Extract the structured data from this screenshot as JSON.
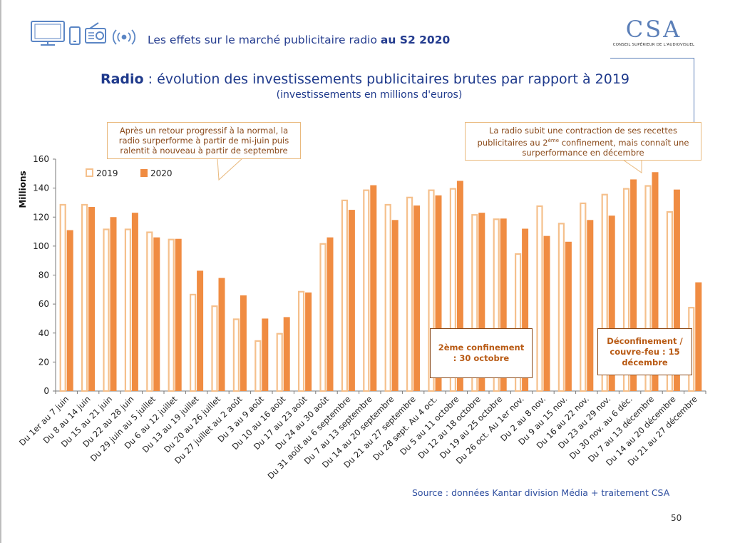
{
  "header": {
    "title_main": "Les effets sur le marché publicitaire radio ",
    "title_bold": "au S2 2020",
    "icons": [
      "tv-icon",
      "smartphone-icon",
      "radio-icon",
      "broadcast-waves-icon"
    ]
  },
  "logo": {
    "mark": "CSA",
    "subtitle": "CONSEIL SUPÉRIEUR DE L'AUDIOVISUEL"
  },
  "title": {
    "bold": "Radio",
    "rest": " : évolution des investissements publicitaires brutes par rapport à 2019",
    "subtitle": "(investissements en millions d'euros)"
  },
  "callouts": {
    "left": "Après un retour progressif à la normal, la radio surperforme à partir de mi-juin puis ralentit à nouveau à partir de septembre",
    "right_part1": "La radio subit une contraction de ses recettes publicitaires au 2",
    "right_sup": "ème",
    "right_part2": " confinement, mais connaît une surperformance en décembre"
  },
  "annotations": {
    "box1_line1": "2ème confinement",
    "box1_line2": ": 30 octobre",
    "box2_line1": "Déconfinement /",
    "box2_line2": "couvre-feu : 15",
    "box2_line3": "décembre"
  },
  "chart_data": {
    "type": "bar",
    "title": "Radio : évolution des investissements publicitaires brutes par rapport à 2019",
    "subtitle": "(investissements en millions d'euros)",
    "ylabel": "Millions",
    "ylim": [
      0,
      160
    ],
    "yticks": [
      0,
      20,
      40,
      60,
      80,
      100,
      120,
      140,
      160
    ],
    "legend_position": "top-left",
    "grid": false,
    "categories": [
      "Du 1er au 7 juin",
      "Du 8 au 14 juin",
      "Du 15 au 21 juin",
      "Du 22 au 28 juin",
      "Du 29 juin au 5 juillet",
      "Du 6 au 12 juillet",
      "Du 13 au 19 juillet",
      "Du 20 au 26 juillet",
      "Du 27 juillet au 2 août",
      "Du 3 au 9 août",
      "Du 10 au 16 août",
      "Du 17 au 23 août",
      "Du 24 au 30 août",
      "Du 31 août au 6 septembre",
      "Du 7 au 13 septembre",
      "Du 14 au 20 septembre",
      "Du 21 au 27 septembre",
      "Du 28 sept. Au 4 oct.",
      "Du 5 au 11 octobre",
      "Du 12 au 18 octobre",
      "Du 19 au 25 octobre",
      "Du 26 oct. Au 1er nov.",
      "Du 2 au 8 nov.",
      "Du 9 au 15 nov.",
      "Du 16 au 22 nov.",
      "Du 23 au 29 nov.",
      "Du 30 nov. au 6 déc.",
      "Du 7 au 13 décembre",
      "Du 14 au 20 décembre",
      "Du 21 au 27 décembre"
    ],
    "series": [
      {
        "name": "2019",
        "color": "#f5c08c",
        "style": "outline",
        "values": [
          129,
          129,
          112,
          112,
          110,
          105,
          67,
          59,
          50,
          35,
          40,
          69,
          102,
          132,
          139,
          129,
          134,
          139,
          140,
          122,
          119,
          95,
          128,
          116,
          130,
          136,
          140,
          142,
          124,
          58
        ]
      },
      {
        "name": "2020",
        "color": "#f08c42",
        "style": "solid",
        "values": [
          111,
          127,
          120,
          123,
          106,
          105,
          83,
          78,
          66,
          50,
          51,
          68,
          106,
          125,
          142,
          118,
          128,
          135,
          145,
          123,
          119,
          112,
          107,
          103,
          118,
          121,
          146,
          151,
          139,
          75
        ]
      }
    ]
  },
  "footer": {
    "source": "Source : données Kantar division Média  + traitement CSA",
    "page": "50"
  }
}
